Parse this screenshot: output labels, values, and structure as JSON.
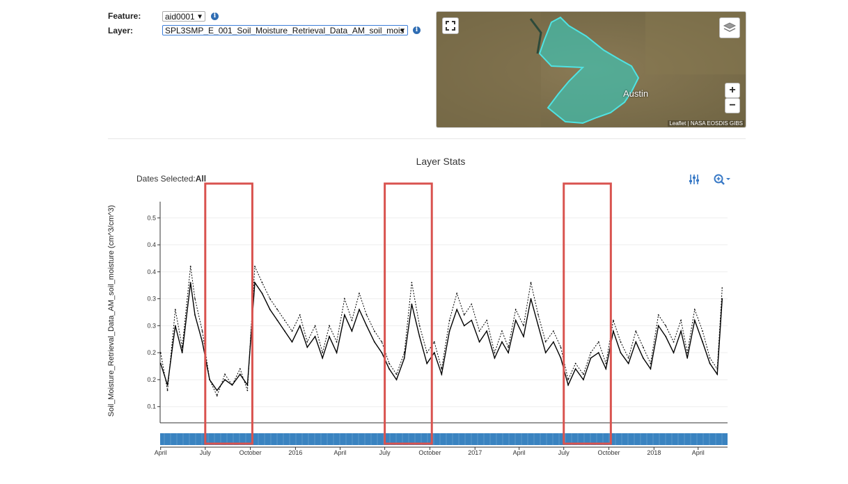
{
  "controls": {
    "feature_label": "Feature:",
    "feature_value": "aid0001",
    "layer_label": "Layer:",
    "layer_value": "SPL3SMP_E_001_Soil_Moisture_Retrieval_Data_AM_soil_mois"
  },
  "map": {
    "city_label": "Austin",
    "attribution": "Leaflet | NASA EOSDIS GIBS",
    "zoom_in": "+",
    "zoom_out": "−",
    "aoi_fill": "#3fc1b0",
    "aoi_outline": "#4fe3e3"
  },
  "toolbar": {
    "dates_selected_label": "Dates Selected:",
    "dates_selected_value": "All"
  },
  "colors": {
    "accent": "#3879c6",
    "highlight": "#d9534f",
    "range_bar": "#3a83c0"
  },
  "chart_data": {
    "type": "line",
    "title": "Layer Stats",
    "ylabel": "Soil_Moisture_Retrieval_Data_AM_soil_moisture (cm^3/cm^3)",
    "xlabel": "",
    "ylim": [
      0.07,
      0.48
    ],
    "y_ticks": [
      0.1,
      0.15,
      0.2,
      0.25,
      0.3,
      0.35,
      0.4,
      0.45
    ],
    "y_tick_labels": [
      "0.1",
      "0.2",
      "0.2",
      "0.3",
      "0.3",
      "0.4",
      "0.4",
      "0.5"
    ],
    "x_range": [
      "2015-03-31",
      "2018-05-31"
    ],
    "x_tick_labels": [
      {
        "label": "April",
        "date": "2015-04-01"
      },
      {
        "label": "July",
        "date": "2015-07-01"
      },
      {
        "label": "October",
        "date": "2015-10-01"
      },
      {
        "label": "2016",
        "date": "2016-01-01"
      },
      {
        "label": "April",
        "date": "2016-04-01"
      },
      {
        "label": "July",
        "date": "2016-07-01"
      },
      {
        "label": "October",
        "date": "2016-10-01"
      },
      {
        "label": "2017",
        "date": "2017-01-01"
      },
      {
        "label": "April",
        "date": "2017-04-01"
      },
      {
        "label": "July",
        "date": "2017-07-01"
      },
      {
        "label": "October",
        "date": "2017-10-01"
      },
      {
        "label": "2018",
        "date": "2018-01-01"
      },
      {
        "label": "April",
        "date": "2018-04-01"
      }
    ],
    "highlighted_periods": [
      {
        "start": "2015-07-01",
        "end": "2015-10-05"
      },
      {
        "start": "2016-07-01",
        "end": "2016-10-05"
      },
      {
        "start": "2017-07-01",
        "end": "2017-10-05"
      }
    ],
    "series": [
      {
        "style": "dashed",
        "x": [
          "2015-04-01",
          "2015-04-15",
          "2015-05-01",
          "2015-05-15",
          "2015-06-01",
          "2015-06-10",
          "2015-06-25",
          "2015-07-10",
          "2015-07-25",
          "2015-08-10",
          "2015-08-25",
          "2015-09-10",
          "2015-09-25",
          "2015-10-10",
          "2015-10-25",
          "2015-11-10",
          "2015-11-25",
          "2015-12-10",
          "2015-12-25",
          "2016-01-10",
          "2016-01-25",
          "2016-02-10",
          "2016-02-25",
          "2016-03-10",
          "2016-03-25",
          "2016-04-10",
          "2016-04-25",
          "2016-05-10",
          "2016-05-25",
          "2016-06-10",
          "2016-06-25",
          "2016-07-10",
          "2016-07-25",
          "2016-08-10",
          "2016-08-25",
          "2016-09-10",
          "2016-09-25",
          "2016-10-10",
          "2016-10-25",
          "2016-11-10",
          "2016-11-25",
          "2016-12-10",
          "2016-12-25",
          "2017-01-10",
          "2017-01-25",
          "2017-02-10",
          "2017-02-25",
          "2017-03-10",
          "2017-03-25",
          "2017-04-10",
          "2017-04-25",
          "2017-05-10",
          "2017-05-25",
          "2017-06-10",
          "2017-06-25",
          "2017-07-10",
          "2017-07-25",
          "2017-08-10",
          "2017-08-25",
          "2017-09-10",
          "2017-09-25",
          "2017-10-10",
          "2017-10-25",
          "2017-11-10",
          "2017-11-25",
          "2017-12-10",
          "2017-12-25",
          "2018-01-10",
          "2018-01-25",
          "2018-02-10",
          "2018-02-25",
          "2018-03-10",
          "2018-03-25",
          "2018-04-10",
          "2018-04-25",
          "2018-05-10",
          "2018-05-20"
        ],
        "y": [
          0.2,
          0.13,
          0.28,
          0.21,
          0.36,
          0.3,
          0.24,
          0.15,
          0.12,
          0.16,
          0.14,
          0.17,
          0.13,
          0.36,
          0.33,
          0.3,
          0.28,
          0.26,
          0.24,
          0.27,
          0.22,
          0.25,
          0.2,
          0.25,
          0.22,
          0.3,
          0.26,
          0.31,
          0.27,
          0.24,
          0.22,
          0.18,
          0.16,
          0.2,
          0.33,
          0.25,
          0.2,
          0.22,
          0.17,
          0.26,
          0.31,
          0.27,
          0.29,
          0.24,
          0.26,
          0.2,
          0.24,
          0.21,
          0.28,
          0.25,
          0.33,
          0.27,
          0.22,
          0.24,
          0.21,
          0.15,
          0.18,
          0.16,
          0.2,
          0.22,
          0.18,
          0.26,
          0.22,
          0.19,
          0.24,
          0.21,
          0.18,
          0.27,
          0.25,
          0.22,
          0.26,
          0.2,
          0.28,
          0.24,
          0.19,
          0.17,
          0.32
        ]
      },
      {
        "style": "solid",
        "x": [
          "2015-04-01",
          "2015-04-15",
          "2015-05-01",
          "2015-05-15",
          "2015-06-01",
          "2015-06-10",
          "2015-06-25",
          "2015-07-10",
          "2015-07-25",
          "2015-08-10",
          "2015-08-25",
          "2015-09-10",
          "2015-09-25",
          "2015-10-10",
          "2015-10-25",
          "2015-11-10",
          "2015-11-25",
          "2015-12-10",
          "2015-12-25",
          "2016-01-10",
          "2016-01-25",
          "2016-02-10",
          "2016-02-25",
          "2016-03-10",
          "2016-03-25",
          "2016-04-10",
          "2016-04-25",
          "2016-05-10",
          "2016-05-25",
          "2016-06-10",
          "2016-06-25",
          "2016-07-10",
          "2016-07-25",
          "2016-08-10",
          "2016-08-25",
          "2016-09-10",
          "2016-09-25",
          "2016-10-10",
          "2016-10-25",
          "2016-11-10",
          "2016-11-25",
          "2016-12-10",
          "2016-12-25",
          "2017-01-10",
          "2017-01-25",
          "2017-02-10",
          "2017-02-25",
          "2017-03-10",
          "2017-03-25",
          "2017-04-10",
          "2017-04-25",
          "2017-05-10",
          "2017-05-25",
          "2017-06-10",
          "2017-06-25",
          "2017-07-10",
          "2017-07-25",
          "2017-08-10",
          "2017-08-25",
          "2017-09-10",
          "2017-09-25",
          "2017-10-10",
          "2017-10-25",
          "2017-11-10",
          "2017-11-25",
          "2017-12-10",
          "2017-12-25",
          "2018-01-10",
          "2018-01-25",
          "2018-02-10",
          "2018-02-25",
          "2018-03-10",
          "2018-03-25",
          "2018-04-10",
          "2018-04-25",
          "2018-05-10",
          "2018-05-20"
        ],
        "y": [
          0.18,
          0.14,
          0.25,
          0.2,
          0.33,
          0.27,
          0.22,
          0.15,
          0.13,
          0.15,
          0.14,
          0.16,
          0.14,
          0.33,
          0.31,
          0.28,
          0.26,
          0.24,
          0.22,
          0.25,
          0.21,
          0.23,
          0.19,
          0.23,
          0.2,
          0.27,
          0.24,
          0.28,
          0.25,
          0.22,
          0.2,
          0.17,
          0.15,
          0.19,
          0.29,
          0.23,
          0.18,
          0.2,
          0.16,
          0.24,
          0.28,
          0.25,
          0.26,
          0.22,
          0.24,
          0.19,
          0.22,
          0.2,
          0.26,
          0.23,
          0.3,
          0.25,
          0.2,
          0.22,
          0.19,
          0.14,
          0.17,
          0.15,
          0.19,
          0.2,
          0.17,
          0.24,
          0.2,
          0.18,
          0.22,
          0.19,
          0.17,
          0.25,
          0.23,
          0.2,
          0.24,
          0.19,
          0.26,
          0.22,
          0.18,
          0.16,
          0.3
        ]
      }
    ]
  }
}
